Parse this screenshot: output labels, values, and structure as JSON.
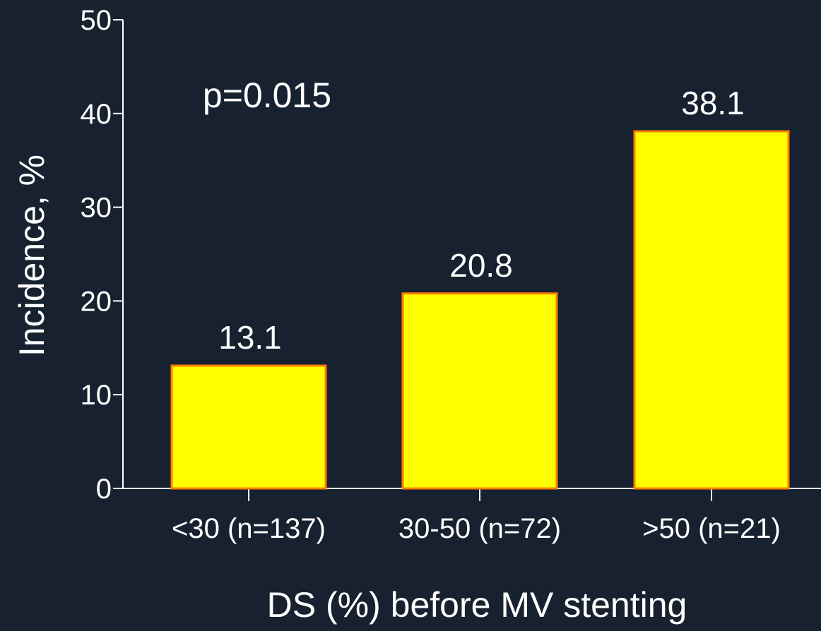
{
  "colors": {
    "background": "#18212f",
    "bar_fill": "#ffff00",
    "bar_stroke": "#ff7f00",
    "axis": "#ffffff",
    "text": "#ffffff"
  },
  "chart_data": {
    "type": "bar",
    "categories": [
      "<30 (n=137)",
      "30-50 (n=72)",
      ">50 (n=21)"
    ],
    "values": [
      13.1,
      20.8,
      38.1
    ],
    "data_labels": [
      "13.1",
      "20.8",
      "38.1"
    ],
    "title": "",
    "xlabel": "DS (%) before MV stenting",
    "ylabel": "Incidence, %",
    "ylim": [
      0,
      50
    ],
    "yticks": [
      0,
      10,
      20,
      30,
      40,
      50
    ],
    "grid": false,
    "legend": "none",
    "annotations": [
      {
        "text": "p=0.015"
      }
    ]
  }
}
